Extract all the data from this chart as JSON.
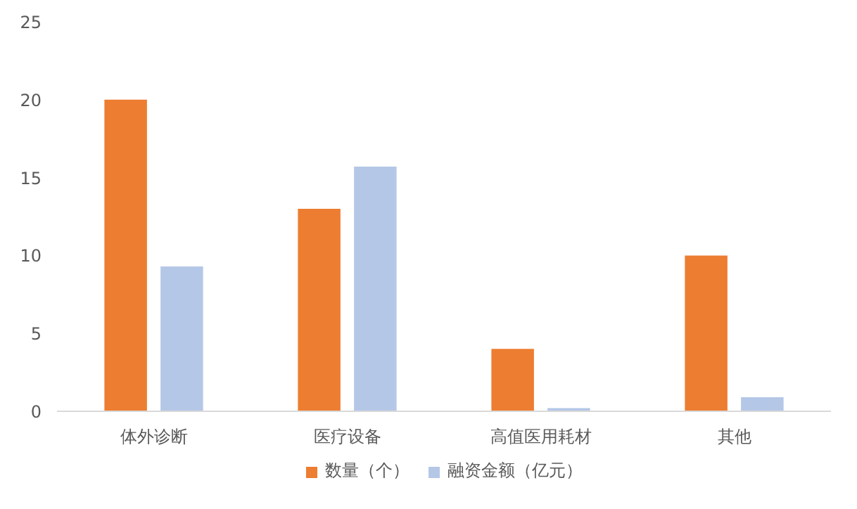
{
  "chart_data": {
    "type": "bar",
    "categories": [
      "体外诊断",
      "医疗设备",
      "高值医用耗材",
      "其他"
    ],
    "series": [
      {
        "name": "数量（个）",
        "color": "#ed7d31",
        "values": [
          20,
          13,
          4,
          10
        ]
      },
      {
        "name": "融资金额（亿元）",
        "color": "#b4c7e7",
        "values": [
          9.3,
          15.7,
          0.2,
          0.9
        ]
      }
    ],
    "ylim": [
      0,
      25
    ],
    "yticks": [
      0,
      5,
      10,
      15,
      20,
      25
    ],
    "grid": false,
    "legend": "bottom"
  }
}
